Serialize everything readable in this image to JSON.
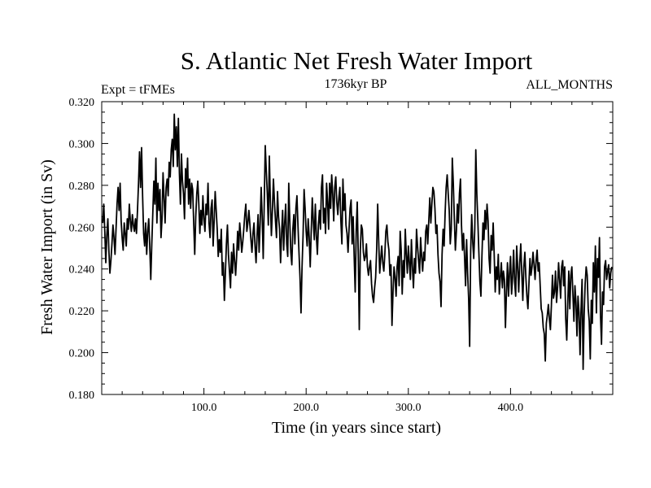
{
  "chart_data": {
    "type": "line",
    "title": "S. Atlantic Net Fresh Water Import",
    "subtitle_left": "Expt = tFMEs",
    "subtitle_center": "1736kyr BP",
    "subtitle_right": "ALL_MONTHS",
    "xlabel": "Time (in years since start)",
    "ylabel": "Fresh Water Import (in Sv)",
    "xlim": [
      0,
      500
    ],
    "ylim": [
      0.18,
      0.32
    ],
    "x_ticks": [
      100,
      200,
      300,
      400
    ],
    "x_tick_labels": [
      "100.0",
      "200.0",
      "300.0",
      "400.0"
    ],
    "y_ticks": [
      0.18,
      0.2,
      0.22,
      0.24,
      0.26,
      0.28,
      0.3,
      0.32
    ],
    "y_tick_labels": [
      "0.180",
      "0.200",
      "0.220",
      "0.240",
      "0.260",
      "0.280",
      "0.300",
      "0.320"
    ],
    "grid": false,
    "series": [
      {
        "name": "Net Fresh Water Import",
        "color": "#000000",
        "x_start": 1,
        "x_step": 1,
        "values": [
          0.262,
          0.271,
          0.258,
          0.243,
          0.256,
          0.264,
          0.249,
          0.238,
          0.244,
          0.252,
          0.261,
          0.255,
          0.247,
          0.259,
          0.271,
          0.279,
          0.268,
          0.281,
          0.263,
          0.255,
          0.249,
          0.262,
          0.257,
          0.251,
          0.264,
          0.259,
          0.271,
          0.263,
          0.258,
          0.266,
          0.261,
          0.258,
          0.264,
          0.257,
          0.268,
          0.281,
          0.296,
          0.279,
          0.298,
          0.275,
          0.257,
          0.251,
          0.262,
          0.247,
          0.258,
          0.264,
          0.251,
          0.235,
          0.252,
          0.267,
          0.282,
          0.271,
          0.293,
          0.262,
          0.281,
          0.268,
          0.278,
          0.255,
          0.264,
          0.286,
          0.274,
          0.262,
          0.279,
          0.283,
          0.275,
          0.291,
          0.284,
          0.297,
          0.302,
          0.289,
          0.314,
          0.297,
          0.308,
          0.289,
          0.312,
          0.286,
          0.271,
          0.295,
          0.282,
          0.276,
          0.264,
          0.288,
          0.279,
          0.293,
          0.271,
          0.283,
          0.269,
          0.281,
          0.278,
          0.262,
          0.247,
          0.265,
          0.276,
          0.282,
          0.271,
          0.257,
          0.268,
          0.261,
          0.275,
          0.264,
          0.258,
          0.271,
          0.266,
          0.281,
          0.262,
          0.255,
          0.269,
          0.273,
          0.251,
          0.263,
          0.277,
          0.268,
          0.259,
          0.246,
          0.254,
          0.248,
          0.259,
          0.237,
          0.243,
          0.225,
          0.238,
          0.252,
          0.261,
          0.247,
          0.239,
          0.231,
          0.248,
          0.238,
          0.252,
          0.244,
          0.237,
          0.246,
          0.258,
          0.249,
          0.262,
          0.256,
          0.248,
          0.253,
          0.259,
          0.266,
          0.271,
          0.258,
          0.262,
          0.268,
          0.261,
          0.254,
          0.248,
          0.257,
          0.262,
          0.251,
          0.243,
          0.256,
          0.266,
          0.248,
          0.262,
          0.279,
          0.265,
          0.245,
          0.271,
          0.299,
          0.287,
          0.276,
          0.261,
          0.294,
          0.272,
          0.256,
          0.268,
          0.283,
          0.272,
          0.263,
          0.255,
          0.277,
          0.265,
          0.259,
          0.243,
          0.257,
          0.268,
          0.249,
          0.262,
          0.271,
          0.252,
          0.246,
          0.281,
          0.263,
          0.248,
          0.242,
          0.259,
          0.266,
          0.252,
          0.269,
          0.275,
          0.261,
          0.248,
          0.236,
          0.219,
          0.241,
          0.256,
          0.278,
          0.269,
          0.258,
          0.251,
          0.264,
          0.255,
          0.241,
          0.258,
          0.274,
          0.263,
          0.254,
          0.271,
          0.256,
          0.247,
          0.261,
          0.268,
          0.259,
          0.279,
          0.285,
          0.262,
          0.269,
          0.257,
          0.281,
          0.272,
          0.259,
          0.281,
          0.269,
          0.285,
          0.276,
          0.263,
          0.279,
          0.284,
          0.272,
          0.266,
          0.274,
          0.279,
          0.263,
          0.252,
          0.283,
          0.268,
          0.276,
          0.261,
          0.257,
          0.248,
          0.259,
          0.269,
          0.273,
          0.252,
          0.265,
          0.246,
          0.229,
          0.258,
          0.272,
          0.247,
          0.211,
          0.249,
          0.261,
          0.259,
          0.248,
          0.244,
          0.246,
          0.252,
          0.241,
          0.237,
          0.241,
          0.244,
          0.233,
          0.227,
          0.224,
          0.231,
          0.236,
          0.249,
          0.271,
          0.253,
          0.238,
          0.245,
          0.251,
          0.243,
          0.239,
          0.247,
          0.258,
          0.261,
          0.253,
          0.249,
          0.237,
          0.242,
          0.213,
          0.229,
          0.241,
          0.236,
          0.227,
          0.241,
          0.246,
          0.232,
          0.258,
          0.249,
          0.228,
          0.244,
          0.236,
          0.259,
          0.247,
          0.238,
          0.251,
          0.243,
          0.235,
          0.254,
          0.241,
          0.231,
          0.245,
          0.238,
          0.259,
          0.251,
          0.244,
          0.238,
          0.255,
          0.246,
          0.239,
          0.248,
          0.244,
          0.258,
          0.261,
          0.252,
          0.263,
          0.274,
          0.262,
          0.271,
          0.279,
          0.277,
          0.269,
          0.257,
          0.261,
          0.247,
          0.238,
          0.234,
          0.222,
          0.247,
          0.259,
          0.251,
          0.267,
          0.279,
          0.285,
          0.276,
          0.268,
          0.252,
          0.259,
          0.293,
          0.281,
          0.264,
          0.249,
          0.258,
          0.271,
          0.262,
          0.276,
          0.283,
          0.261,
          0.249,
          0.257,
          0.246,
          0.232,
          0.254,
          0.238,
          0.226,
          0.203,
          0.249,
          0.266,
          0.253,
          0.245,
          0.259,
          0.297,
          0.276,
          0.263,
          0.248,
          0.234,
          0.227,
          0.246,
          0.262,
          0.254,
          0.268,
          0.259,
          0.271,
          0.263,
          0.245,
          0.238,
          0.256,
          0.249,
          0.262,
          0.247,
          0.229,
          0.241,
          0.235,
          0.247,
          0.228,
          0.236,
          0.243,
          0.231,
          0.239,
          0.235,
          0.212,
          0.229,
          0.243,
          0.227,
          0.238,
          0.246,
          0.228,
          0.236,
          0.249,
          0.234,
          0.227,
          0.251,
          0.241,
          0.229,
          0.243,
          0.252,
          0.238,
          0.225,
          0.241,
          0.248,
          0.236,
          0.227,
          0.221,
          0.233,
          0.245,
          0.237,
          0.241,
          0.248,
          0.242,
          0.235,
          0.244,
          0.249,
          0.239,
          0.243,
          0.232,
          0.221,
          0.219,
          0.212,
          0.209,
          0.196,
          0.214,
          0.218,
          0.223,
          0.216,
          0.211,
          0.223,
          0.237,
          0.226,
          0.229,
          0.239,
          0.224,
          0.231,
          0.243,
          0.235,
          0.226,
          0.241,
          0.244,
          0.232,
          0.241,
          0.216,
          0.206,
          0.224,
          0.239,
          0.221,
          0.237,
          0.241,
          0.228,
          0.215,
          0.232,
          0.224,
          0.208,
          0.227,
          0.219,
          0.199,
          0.221,
          0.235,
          0.192,
          0.218,
          0.233,
          0.241,
          0.237,
          0.221,
          0.215,
          0.197,
          0.225,
          0.214,
          0.243,
          0.229,
          0.251,
          0.219,
          0.245,
          0.236,
          0.255,
          0.218,
          0.204,
          0.229,
          0.223,
          0.241,
          0.244,
          0.235,
          0.239,
          0.242,
          0.231,
          0.238,
          0.241
        ]
      }
    ]
  }
}
